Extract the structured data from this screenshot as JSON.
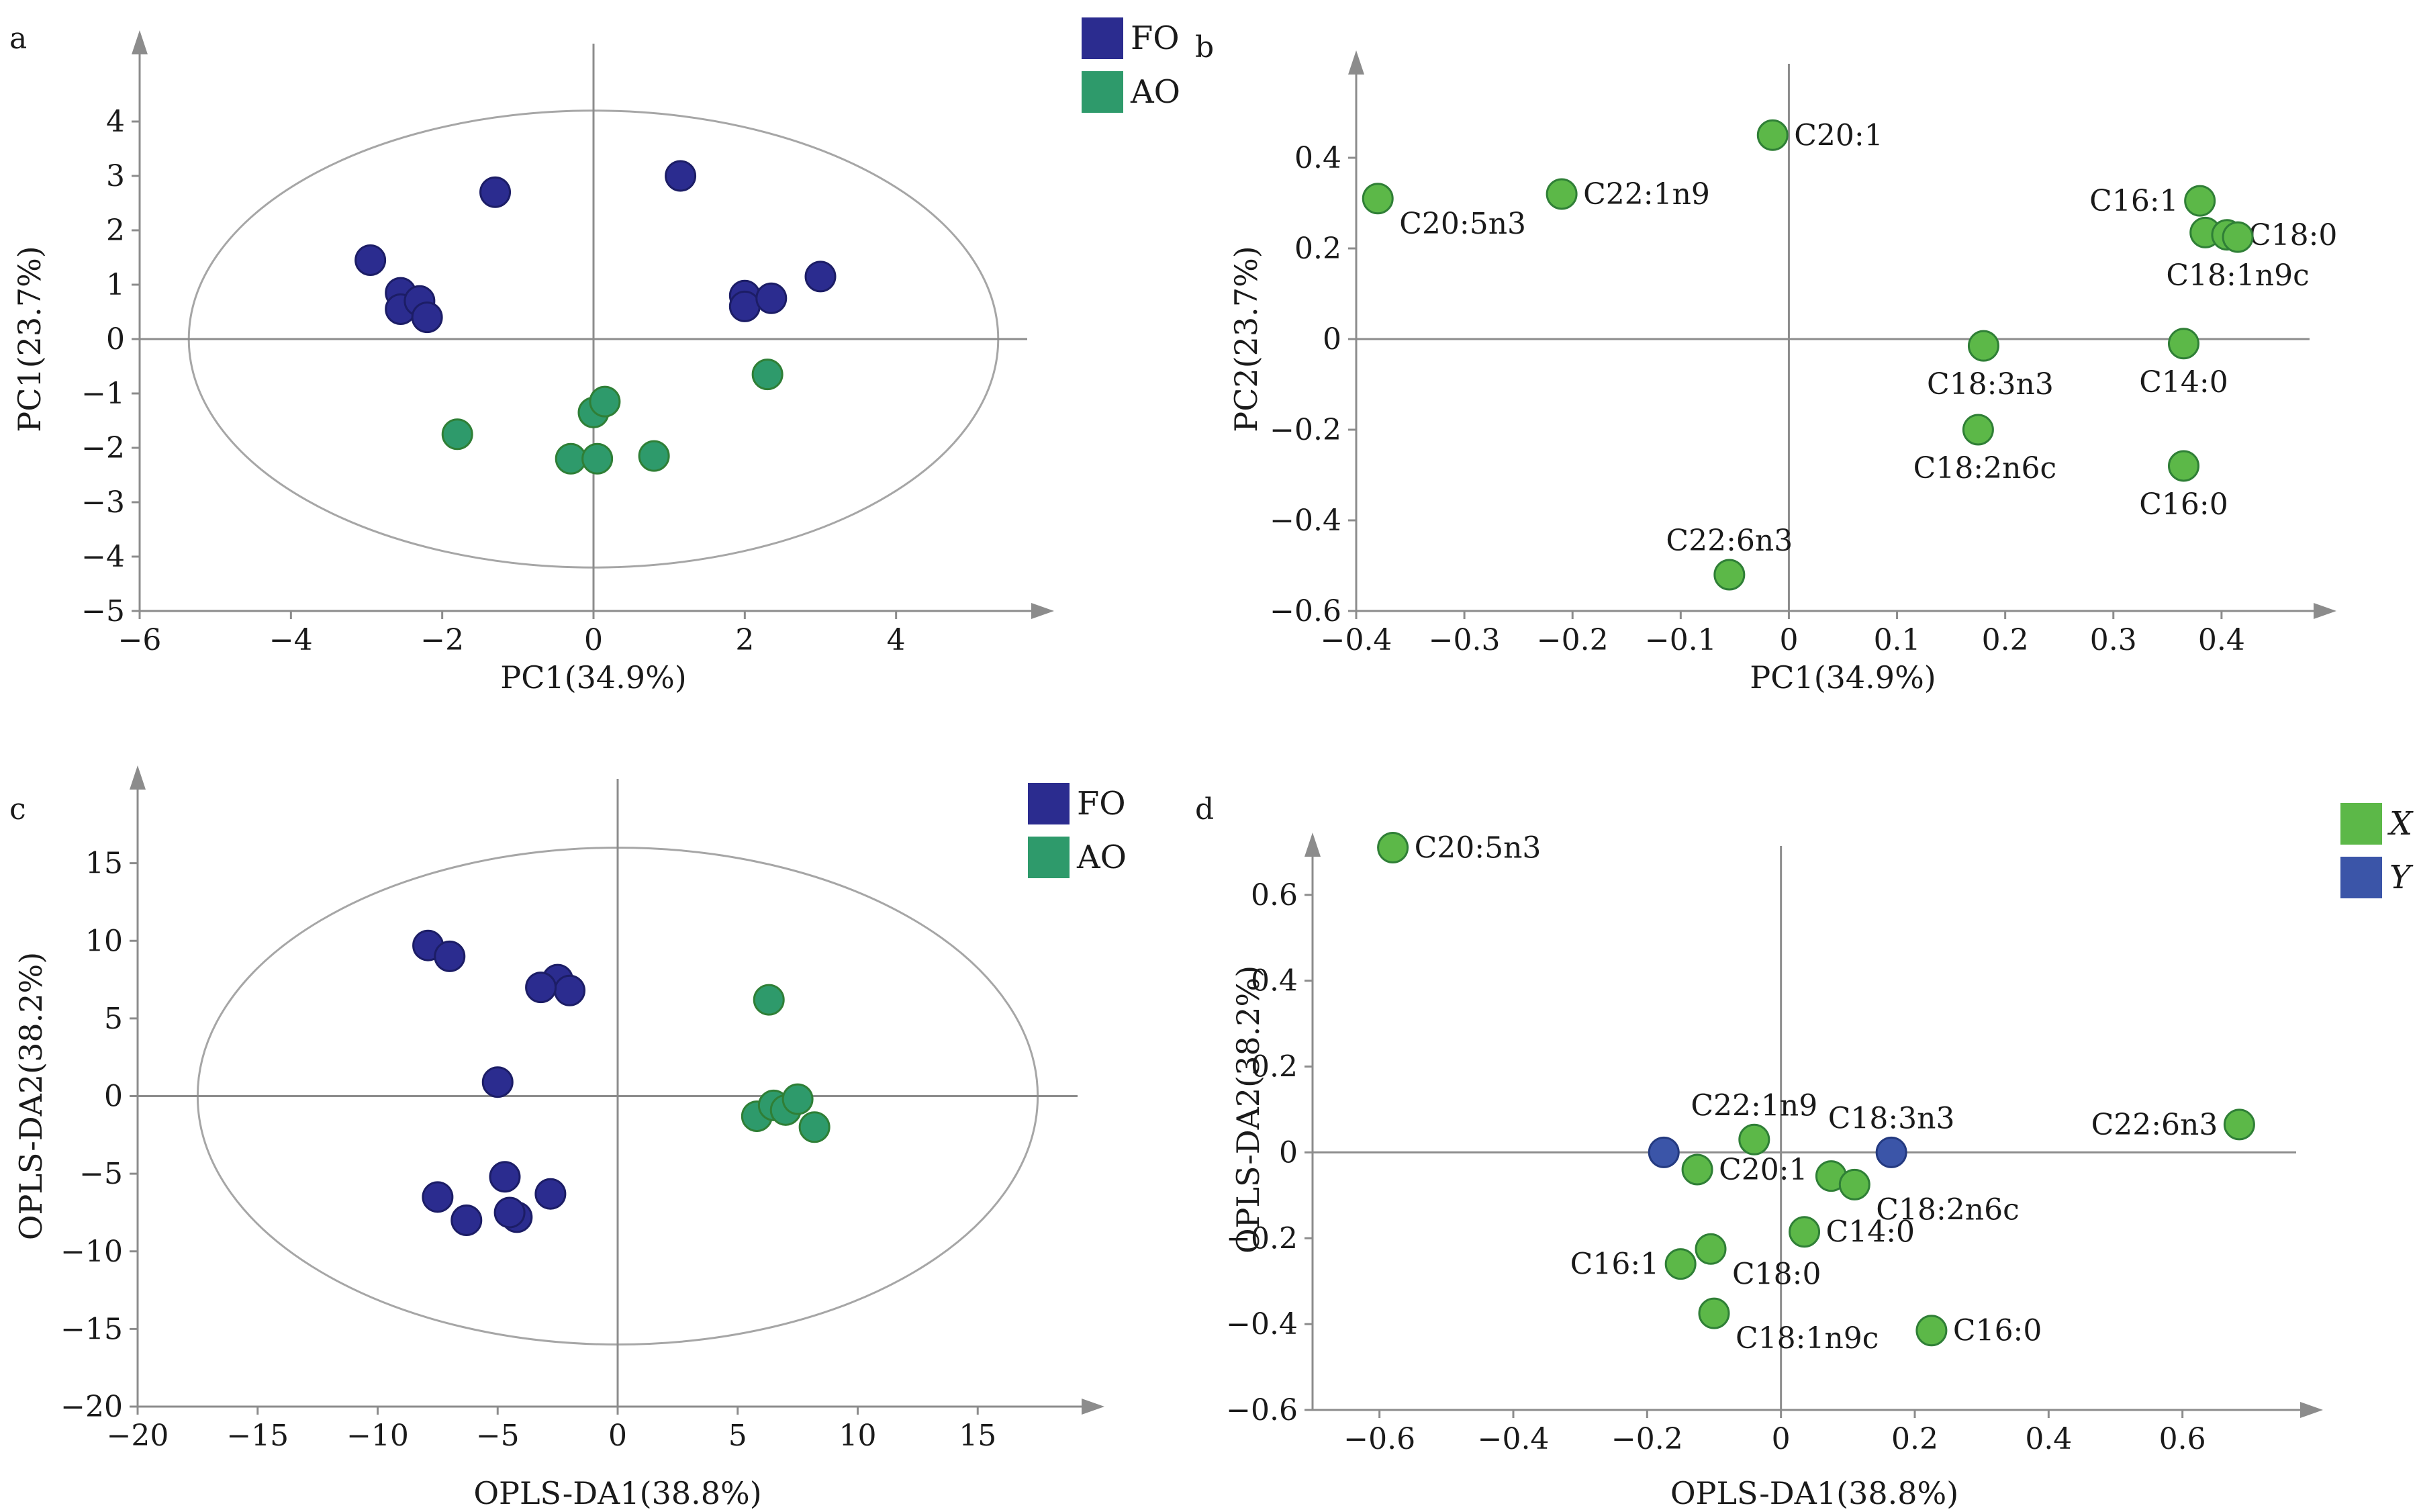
{
  "colors": {
    "FO": "#2b2c8f",
    "AO": "#2e9a6b",
    "X": "#5cb848",
    "Y": "#3b55a8",
    "axis": "#8c8c8c"
  },
  "chart_data": [
    {
      "id": "a",
      "type": "scatter",
      "panel_letter": "a",
      "xlabel": "PC1(34.9%)",
      "ylabel": "PC1(23.7%)",
      "xlim": [
        -6,
        6
      ],
      "ylim": [
        -5,
        5
      ],
      "xticks": [
        -6,
        -4,
        -2,
        0,
        2,
        4
      ],
      "yticks": [
        -5,
        -4,
        -3,
        -2,
        -1,
        0,
        1,
        2,
        3,
        4
      ],
      "ellipse": {
        "cx": 0,
        "cy": 0,
        "rx": 5.35,
        "ry": 4.2
      },
      "legend": [
        {
          "name": "FO",
          "color": "#2b2c8f"
        },
        {
          "name": "AO",
          "color": "#2e9a6b"
        }
      ],
      "series": [
        {
          "name": "FO",
          "color": "#2b2c8f",
          "points": [
            [
              -1.3,
              2.7
            ],
            [
              1.15,
              3.0
            ],
            [
              -2.95,
              1.45
            ],
            [
              -2.55,
              0.85
            ],
            [
              -2.55,
              0.55
            ],
            [
              -2.3,
              0.7
            ],
            [
              -2.2,
              0.4
            ],
            [
              2.0,
              0.8
            ],
            [
              2.0,
              0.6
            ],
            [
              2.35,
              0.75
            ],
            [
              3.0,
              1.15
            ]
          ]
        },
        {
          "name": "AO",
          "color": "#2e9a6b",
          "points": [
            [
              -1.8,
              -1.75
            ],
            [
              0.0,
              -1.35
            ],
            [
              0.15,
              -1.15
            ],
            [
              -0.3,
              -2.2
            ],
            [
              0.05,
              -2.2
            ],
            [
              0.8,
              -2.15
            ],
            [
              2.3,
              -0.65
            ]
          ]
        }
      ]
    },
    {
      "id": "b",
      "type": "scatter",
      "panel_letter": "b",
      "xlabel": "PC1(34.9%)",
      "ylabel": "PC2(23.7%)",
      "xlim": [
        -0.4,
        0.5
      ],
      "ylim": [
        -0.6,
        0.6
      ],
      "xticks": [
        -0.4,
        -0.3,
        -0.2,
        -0.1,
        0,
        0.1,
        0.2,
        0.3,
        0.4
      ],
      "yticks": [
        -0.6,
        -0.4,
        -0.2,
        0,
        0.2,
        0.4
      ],
      "series": [
        {
          "name": "",
          "color": "#5cb848",
          "points": [
            {
              "x": -0.015,
              "y": 0.45,
              "label": "C20:1",
              "pos": "right"
            },
            {
              "x": -0.21,
              "y": 0.32,
              "label": "C22:1n9",
              "pos": "right"
            },
            {
              "x": -0.38,
              "y": 0.31,
              "label": "C20:5n3",
              "pos": "below-right"
            },
            {
              "x": 0.38,
              "y": 0.305,
              "label": "C16:1",
              "pos": "left"
            },
            {
              "x": 0.385,
              "y": 0.235,
              "label": "",
              "pos": "none"
            },
            {
              "x": 0.405,
              "y": 0.23,
              "label": "C18:0",
              "pos": "right"
            },
            {
              "x": 0.415,
              "y": 0.225,
              "label": "C18:1n9c",
              "pos": "below"
            },
            {
              "x": 0.18,
              "y": -0.015,
              "label": "C18:3n3",
              "pos": "below-left"
            },
            {
              "x": 0.365,
              "y": -0.01,
              "label": "C14:0",
              "pos": "below"
            },
            {
              "x": 0.175,
              "y": -0.2,
              "label": "C18:2n6c",
              "pos": "below-left"
            },
            {
              "x": 0.365,
              "y": -0.28,
              "label": "C16:0",
              "pos": "below"
            },
            {
              "x": -0.055,
              "y": -0.52,
              "label": "C22:6n3",
              "pos": "above"
            }
          ]
        }
      ]
    },
    {
      "id": "c",
      "type": "scatter",
      "panel_letter": "c",
      "xlabel": "OPLS-DA1(38.8%)",
      "ylabel": "OPLS-DA2(38.2%)",
      "xlim": [
        -20,
        20
      ],
      "ylim": [
        -20,
        20
      ],
      "xticks": [
        -20,
        -15,
        -10,
        -5,
        0,
        5,
        10,
        15
      ],
      "yticks": [
        -20,
        -15,
        -10,
        -5,
        0,
        5,
        10,
        15
      ],
      "ellipse": {
        "cx": 0,
        "cy": 0,
        "rx": 17.5,
        "ry": 16
      },
      "legend": [
        {
          "name": "FO",
          "color": "#2b2c8f"
        },
        {
          "name": "AO",
          "color": "#2e9a6b"
        }
      ],
      "series": [
        {
          "name": "FO",
          "color": "#2b2c8f",
          "points": [
            [
              -7.9,
              9.7
            ],
            [
              -7.0,
              9.0
            ],
            [
              -2.5,
              7.5
            ],
            [
              -2.0,
              6.8
            ],
            [
              -3.2,
              7.0
            ],
            [
              -5.0,
              0.9
            ],
            [
              -7.5,
              -6.5
            ],
            [
              -6.3,
              -8.0
            ],
            [
              -4.7,
              -5.2
            ],
            [
              -4.2,
              -7.8
            ],
            [
              -4.5,
              -7.5
            ],
            [
              -2.8,
              -6.3
            ]
          ]
        },
        {
          "name": "AO",
          "color": "#2e9a6b",
          "points": [
            [
              6.3,
              6.2
            ],
            [
              5.8,
              -1.3
            ],
            [
              6.5,
              -0.6
            ],
            [
              7.0,
              -0.9
            ],
            [
              7.5,
              -0.2
            ],
            [
              8.2,
              -2.0
            ]
          ]
        }
      ]
    },
    {
      "id": "d",
      "type": "scatter",
      "panel_letter": "d",
      "xlabel": "OPLS-DA1(38.8%)",
      "ylabel": "OPLS-DA2(38.2%)",
      "xlim": [
        -0.7,
        0.8
      ],
      "ylim": [
        -0.6,
        0.8
      ],
      "xticks": [
        -0.6,
        -0.4,
        -0.2,
        0,
        0.2,
        0.4,
        0.6
      ],
      "yticks": [
        -0.6,
        -0.4,
        -0.2,
        0,
        0.2,
        0.4,
        0.6
      ],
      "legend": [
        {
          "name": "X",
          "color": "#5cb848"
        },
        {
          "name": "Y",
          "color": "#3b55a8"
        }
      ],
      "series": [
        {
          "name": "X",
          "color": "#5cb848",
          "points": [
            {
              "x": -0.58,
              "y": 0.71,
              "label": "C20:5n3",
              "pos": "right"
            },
            {
              "x": -0.04,
              "y": 0.03,
              "label": "C22:1n9",
              "pos": "above"
            },
            {
              "x": -0.125,
              "y": -0.04,
              "label": "C20:1",
              "pos": "right"
            },
            {
              "x": 0.075,
              "y": -0.055,
              "label": "",
              "pos": "none"
            },
            {
              "x": 0.11,
              "y": -0.075,
              "label": "C18:2n6c",
              "pos": "below-right"
            },
            {
              "x": 0.035,
              "y": -0.185,
              "label": "C14:0",
              "pos": "right"
            },
            {
              "x": -0.15,
              "y": -0.26,
              "label": "C16:1",
              "pos": "left"
            },
            {
              "x": -0.105,
              "y": -0.225,
              "label": "C18:0",
              "pos": "below-right"
            },
            {
              "x": -0.1,
              "y": -0.375,
              "label": "C18:1n9c",
              "pos": "below-right"
            },
            {
              "x": 0.225,
              "y": -0.415,
              "label": "C16:0",
              "pos": "right"
            },
            {
              "x": 0.685,
              "y": 0.065,
              "label": "C22:6n3",
              "pos": "left"
            }
          ]
        },
        {
          "name": "Y",
          "color": "#3b55a8",
          "points": [
            {
              "x": -0.175,
              "y": 0.0,
              "label": "",
              "pos": "none"
            },
            {
              "x": 0.165,
              "y": 0.0,
              "label": "C18:3n3",
              "pos": "above"
            }
          ]
        }
      ]
    }
  ]
}
